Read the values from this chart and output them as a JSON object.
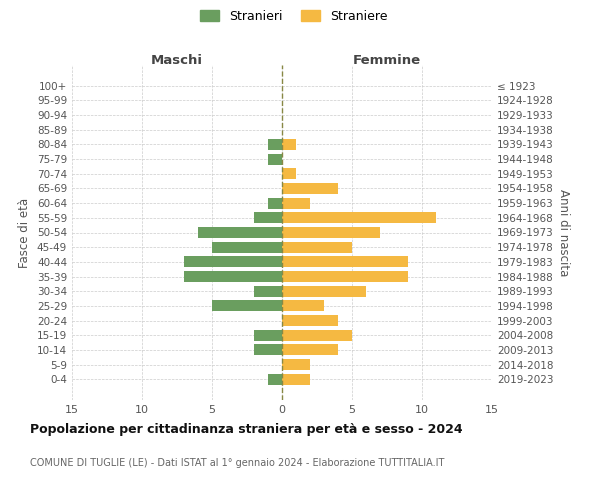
{
  "age_groups": [
    "0-4",
    "5-9",
    "10-14",
    "15-19",
    "20-24",
    "25-29",
    "30-34",
    "35-39",
    "40-44",
    "45-49",
    "50-54",
    "55-59",
    "60-64",
    "65-69",
    "70-74",
    "75-79",
    "80-84",
    "85-89",
    "90-94",
    "95-99",
    "100+"
  ],
  "birth_years": [
    "2019-2023",
    "2014-2018",
    "2009-2013",
    "2004-2008",
    "1999-2003",
    "1994-1998",
    "1989-1993",
    "1984-1988",
    "1979-1983",
    "1974-1978",
    "1969-1973",
    "1964-1968",
    "1959-1963",
    "1954-1958",
    "1949-1953",
    "1944-1948",
    "1939-1943",
    "1934-1938",
    "1929-1933",
    "1924-1928",
    "≤ 1923"
  ],
  "males": [
    1,
    0,
    2,
    2,
    0,
    5,
    2,
    7,
    7,
    5,
    6,
    2,
    1,
    0,
    0,
    1,
    1,
    0,
    0,
    0,
    0
  ],
  "females": [
    2,
    2,
    4,
    5,
    4,
    3,
    6,
    9,
    9,
    5,
    7,
    11,
    2,
    4,
    1,
    0,
    1,
    0,
    0,
    0,
    0
  ],
  "male_color": "#6a9e5f",
  "female_color": "#f5b942",
  "grid_color": "#cccccc",
  "dashed_line_color": "#888844",
  "xlim": 15,
  "title": "Popolazione per cittadinanza straniera per età e sesso - 2024",
  "subtitle": "COMUNE DI TUGLIE (LE) - Dati ISTAT al 1° gennaio 2024 - Elaborazione TUTTITALIA.IT",
  "legend_stranieri": "Stranieri",
  "legend_straniere": "Straniere",
  "xlabel_left": "Maschi",
  "xlabel_right": "Femmine",
  "ylabel_left": "Fasce di età",
  "ylabel_right": "Anni di nascita",
  "bg_color": "#ffffff",
  "bar_height": 0.75
}
